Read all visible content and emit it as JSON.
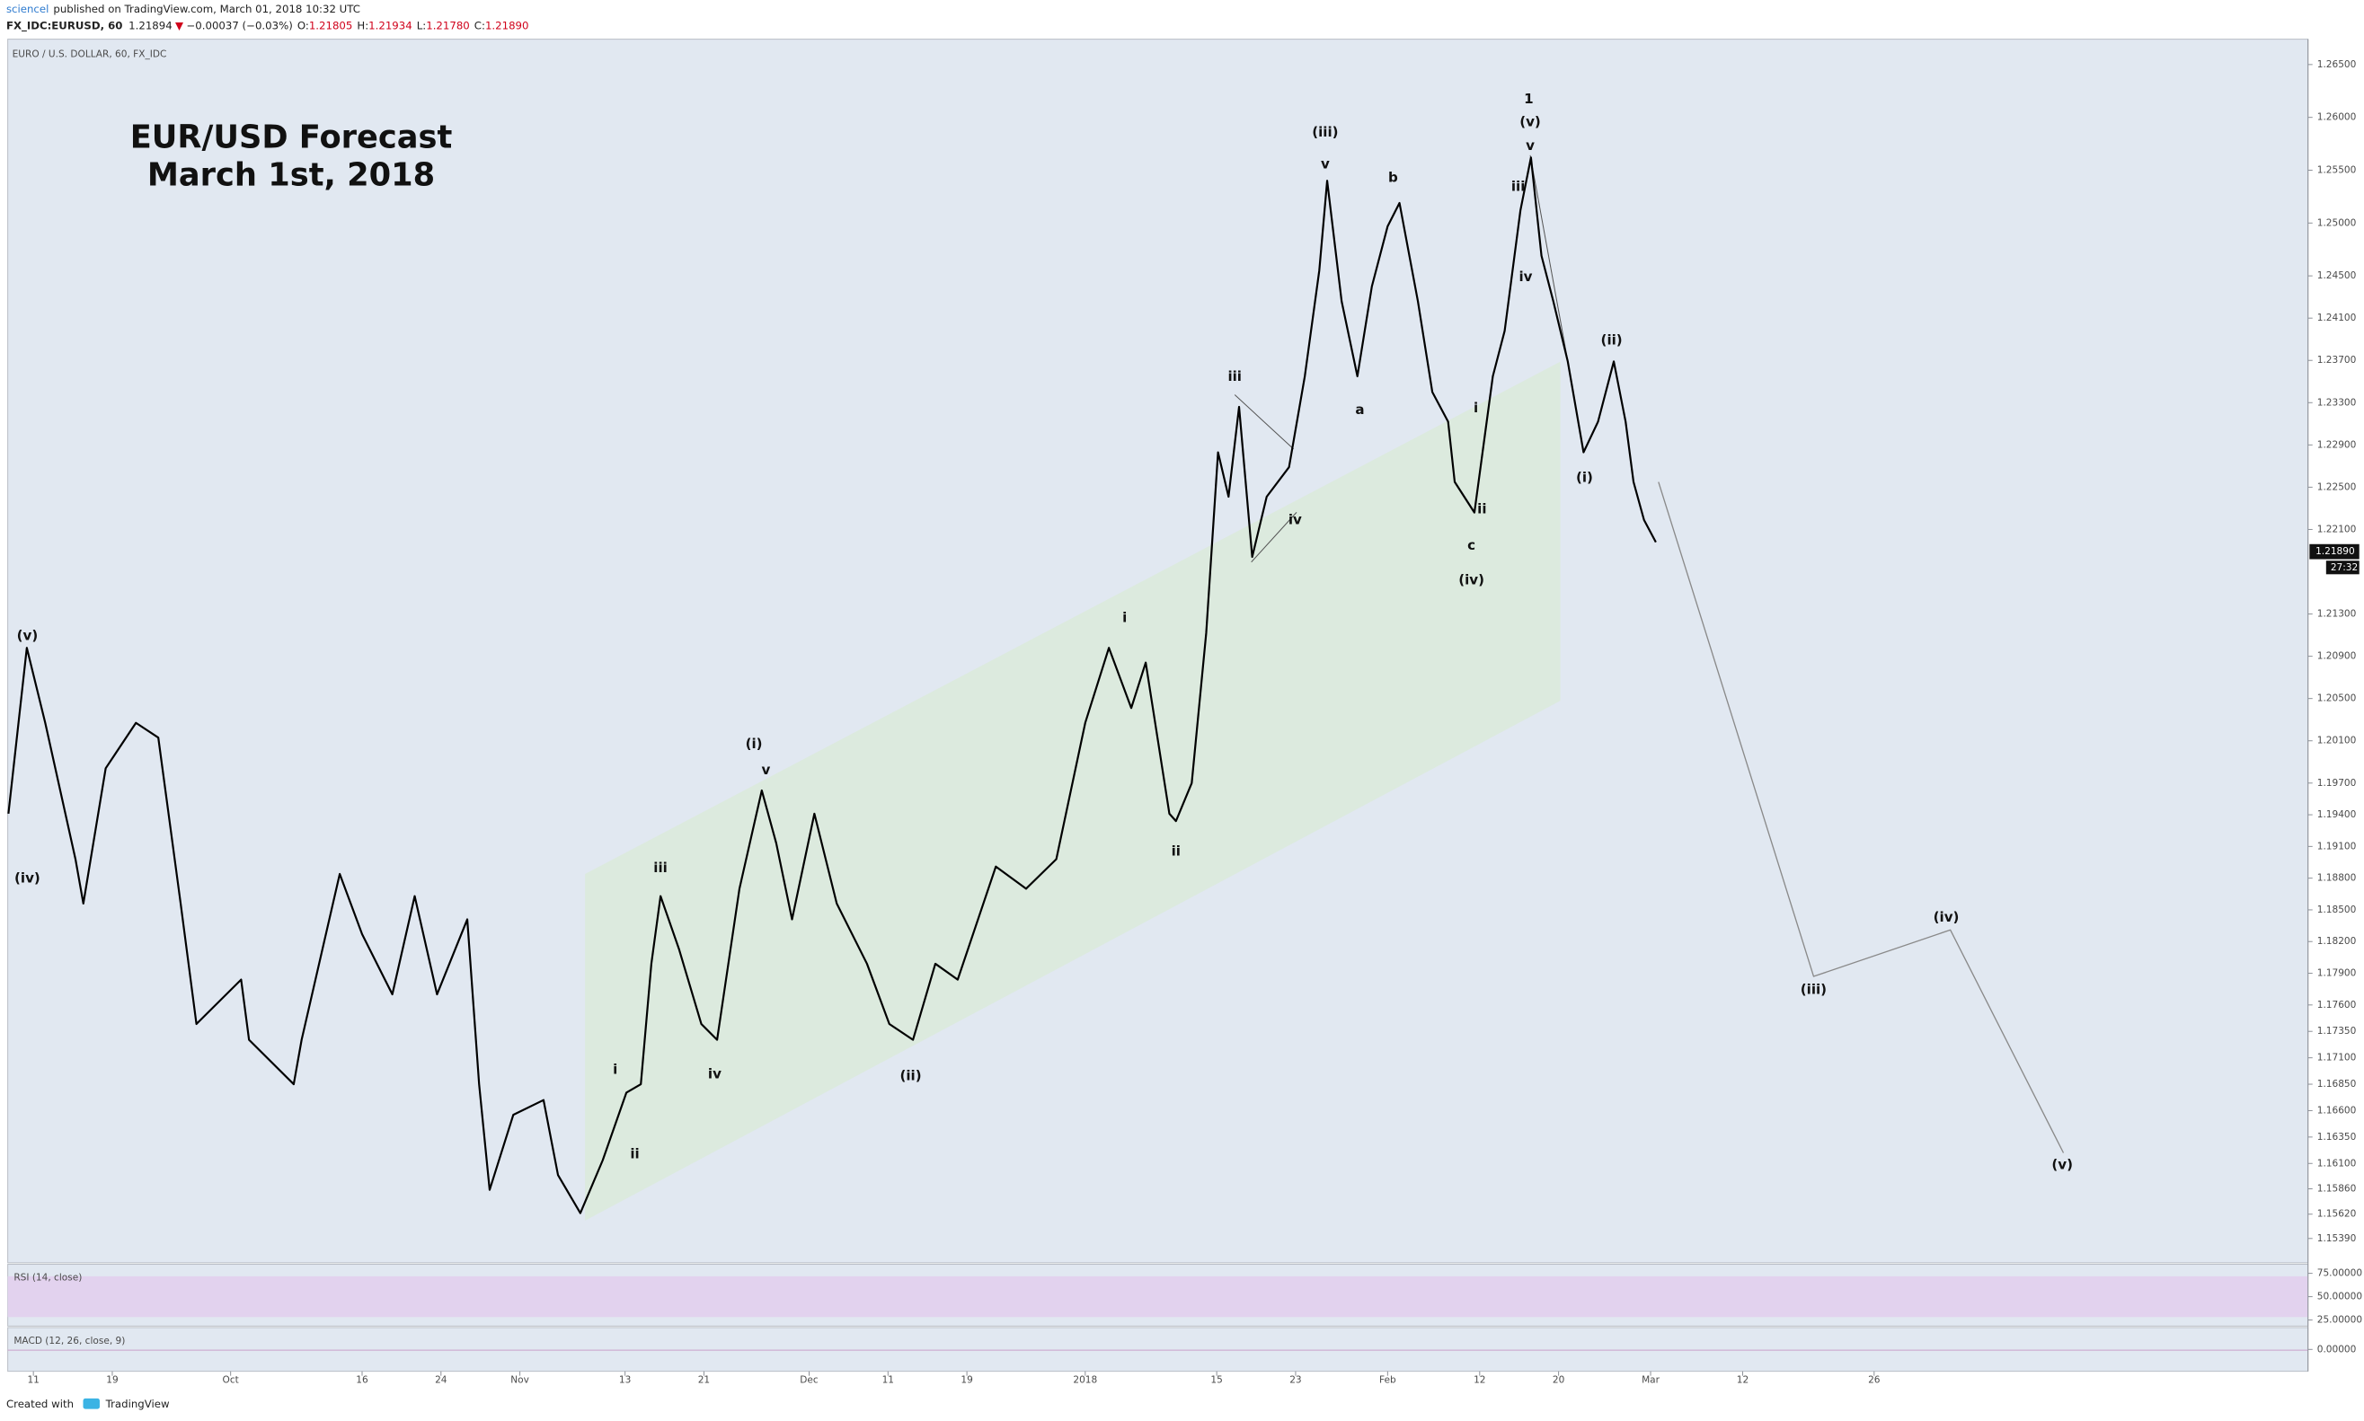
{
  "header": {
    "author": "sciencel",
    "published": "published on TradingView.com, March 01, 2018 10:32 UTC",
    "symbol": "FX_IDC:EURUSD, 60",
    "last": "1.21894",
    "change": "−0.00037 (−0.03%)",
    "ohlc": [
      {
        "label": "O:",
        "value": "1.21805"
      },
      {
        "label": "H:",
        "value": "1.21934"
      },
      {
        "label": "L:",
        "value": "1.21780"
      },
      {
        "label": "C:",
        "value": "1.21890"
      }
    ]
  },
  "chart_data": {
    "type": "line",
    "title": "EUR/USD Forecast",
    "subtitle": "March 1st, 2018",
    "xlim": [
      -1.95,
      173
    ],
    "ylim": [
      1.1516,
      1.2674
    ],
    "grid": false,
    "xticks": [
      {
        "value": 0,
        "label": "11"
      },
      {
        "value": 6,
        "label": "19"
      },
      {
        "value": 15,
        "label": "Oct"
      },
      {
        "value": 25,
        "label": "16"
      },
      {
        "value": 31,
        "label": "24"
      },
      {
        "value": 37,
        "label": "Nov"
      },
      {
        "value": 45,
        "label": "13"
      },
      {
        "value": 51,
        "label": "21"
      },
      {
        "value": 59,
        "label": "Dec"
      },
      {
        "value": 65,
        "label": "11"
      },
      {
        "value": 71,
        "label": "19"
      },
      {
        "value": 80,
        "label": "2018"
      },
      {
        "value": 90,
        "label": "15"
      },
      {
        "value": 96,
        "label": "23"
      },
      {
        "value": 103,
        "label": "Feb"
      },
      {
        "value": 110,
        "label": "12"
      },
      {
        "value": 116,
        "label": "20"
      },
      {
        "value": 123,
        "label": "Mar"
      },
      {
        "value": 130,
        "label": "12"
      },
      {
        "value": 140,
        "label": "26"
      }
    ],
    "yticks": [
      {
        "value": 1.265,
        "label": "1.26500"
      },
      {
        "value": 1.26,
        "label": "1.26000"
      },
      {
        "value": 1.255,
        "label": "1.25500"
      },
      {
        "value": 1.25,
        "label": "1.25000"
      },
      {
        "value": 1.245,
        "label": "1.24500"
      },
      {
        "value": 1.241,
        "label": "1.24100"
      },
      {
        "value": 1.237,
        "label": "1.23700"
      },
      {
        "value": 1.233,
        "label": "1.23300"
      },
      {
        "value": 1.229,
        "label": "1.22900"
      },
      {
        "value": 1.225,
        "label": "1.22500"
      },
      {
        "value": 1.221,
        "label": "1.22100"
      },
      {
        "value": 1.213,
        "label": "1.21300"
      },
      {
        "value": 1.209,
        "label": "1.20900"
      },
      {
        "value": 1.205,
        "label": "1.20500"
      },
      {
        "value": 1.201,
        "label": "1.20100"
      },
      {
        "value": 1.197,
        "label": "1.19700"
      },
      {
        "value": 1.194,
        "label": "1.19400"
      },
      {
        "value": 1.191,
        "label": "1.19100"
      },
      {
        "value": 1.188,
        "label": "1.18800"
      },
      {
        "value": 1.185,
        "label": "1.18500"
      },
      {
        "value": 1.182,
        "label": "1.18200"
      },
      {
        "value": 1.179,
        "label": "1.17900"
      },
      {
        "value": 1.176,
        "label": "1.17600"
      },
      {
        "value": 1.1735,
        "label": "1.17350"
      },
      {
        "value": 1.171,
        "label": "1.17100"
      },
      {
        "value": 1.1685,
        "label": "1.16850"
      },
      {
        "value": 1.166,
        "label": "1.16600"
      },
      {
        "value": 1.1635,
        "label": "1.16350"
      },
      {
        "value": 1.161,
        "label": "1.16100"
      },
      {
        "value": 1.1586,
        "label": "1.15860"
      },
      {
        "value": 1.1562,
        "label": "1.15620"
      },
      {
        "value": 1.1539,
        "label": "1.15390"
      }
    ],
    "last_price": {
      "value": 1.2189,
      "label": "1.21890"
    },
    "countdown": "27:32",
    "series": [
      {
        "name": "EURO / U.S. DOLLAR, 60, FX_IDC",
        "color": "#000000",
        "x": [
          -1.9,
          -0.5,
          0.9,
          3.2,
          3.8,
          5.5,
          7.8,
          9.5,
          11.2,
          12.4,
          15.8,
          16.4,
          19.8,
          20.4,
          23.3,
          25.0,
          27.3,
          29.0,
          30.7,
          33.0,
          33.9,
          34.7,
          36.5,
          38.8,
          39.9,
          41.6,
          43.3,
          45.1,
          46.2,
          47.0,
          47.7,
          49.1,
          50.8,
          52.0,
          53.7,
          55.4,
          56.5,
          57.7,
          59.4,
          61.1,
          63.4,
          65.1,
          66.9,
          68.6,
          70.3,
          73.2,
          75.5,
          77.8,
          80.0,
          81.8,
          83.5,
          84.6,
          86.4,
          86.9,
          88.1,
          89.2,
          90.1,
          90.9,
          91.7,
          92.7,
          93.8,
          95.5,
          96.7,
          97.8,
          98.4,
          99.5,
          100.7,
          101.8,
          103.0,
          103.9,
          105.3,
          106.4,
          107.6,
          108.1,
          109.6,
          111.0,
          111.9,
          113.1,
          113.9,
          114.7,
          115.6,
          116.7,
          117.9,
          119.0,
          120.2,
          121.1,
          121.7,
          122.5,
          123.4
        ],
        "values": [
          1.1941,
          1.2098,
          1.2027,
          1.1898,
          1.1856,
          1.1984,
          1.2027,
          1.2013,
          1.1856,
          1.1742,
          1.1784,
          1.1727,
          1.1685,
          1.1727,
          1.1884,
          1.1827,
          1.177,
          1.1863,
          1.177,
          1.1841,
          1.1685,
          1.1585,
          1.1656,
          1.167,
          1.1599,
          1.1563,
          1.1613,
          1.1677,
          1.1685,
          1.1799,
          1.1863,
          1.1813,
          1.1742,
          1.1727,
          1.187,
          1.1963,
          1.1913,
          1.1841,
          1.1941,
          1.1856,
          1.1799,
          1.1742,
          1.1727,
          1.1799,
          1.1784,
          1.1891,
          1.187,
          1.1898,
          1.2027,
          1.2098,
          1.2041,
          1.2084,
          1.1941,
          1.1934,
          1.197,
          1.2112,
          1.2283,
          1.2241,
          1.2326,
          1.2184,
          1.2241,
          1.2269,
          1.2355,
          1.2455,
          1.254,
          1.2426,
          1.2355,
          1.244,
          1.2497,
          1.2519,
          1.2426,
          1.234,
          1.2312,
          1.2255,
          1.2226,
          1.2355,
          1.2398,
          1.2512,
          1.2562,
          1.2469,
          1.2426,
          1.2369,
          1.2283,
          1.2312,
          1.2369,
          1.2312,
          1.2255,
          1.2219,
          1.2198
        ]
      },
      {
        "color": "#8a8a8a",
        "x": [
          123.6,
          135.4,
          145.8,
          154.4
        ],
        "values": [
          1.2255,
          1.1787,
          1.1831,
          1.162
        ]
      }
    ],
    "annotations": [
      "(v)",
      "(iv)",
      "i",
      "ii",
      "iii",
      "iv",
      "(i)",
      "v",
      "(ii)",
      "i",
      "ii",
      "iii",
      "iv",
      "(iii)",
      "v",
      "a",
      "b",
      "c",
      "(iv)",
      "i",
      "ii",
      "iii",
      "iv",
      "v",
      "(v)",
      "1",
      "(ii)",
      "(i)",
      "(iii)",
      "(iv)",
      "(v)"
    ]
  },
  "indicators": {
    "rsi": {
      "label": "RSI (14, close)",
      "ylim": [
        18.5,
        84.7
      ],
      "yticks": [
        {
          "value": 75,
          "label": "75.00000"
        },
        {
          "value": 50,
          "label": "50.00000"
        },
        {
          "value": 25,
          "label": "25.00000"
        }
      ]
    },
    "macd": {
      "label": "MACD (12, 26, close, 9)",
      "ylim": [
        -0.0035,
        0.0035
      ],
      "yticks": [
        {
          "value": 0,
          "label": "0.00000"
        }
      ]
    }
  },
  "footer": {
    "created": "Created with",
    "brand": "TradingView"
  }
}
